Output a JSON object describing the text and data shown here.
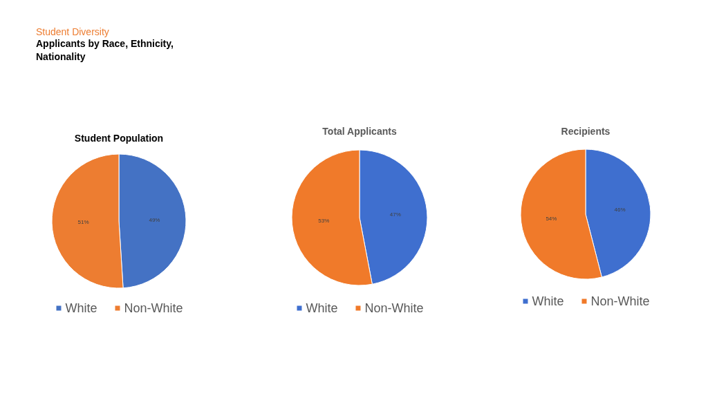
{
  "chart_data": [
    {
      "type": "other",
      "title": "Student Diversity",
      "subtitle": "Applicants by Race, Ethnicity, Nationality"
    },
    {
      "type": "pie",
      "title": "Student Population",
      "categories": [
        "White",
        "Non-White"
      ],
      "values": [
        49,
        51
      ],
      "value_labels": [
        "49%",
        "51%"
      ],
      "colors": [
        "#4472c4",
        "#ed7d31"
      ],
      "legend": "bottom"
    },
    {
      "type": "pie",
      "title": "Total Applicants",
      "categories": [
        "White",
        "Non-White"
      ],
      "values": [
        47,
        53
      ],
      "value_labels": [
        "47%",
        "53%"
      ],
      "colors": [
        "#3f6fcf",
        "#f07a2a"
      ],
      "legend": "bottom"
    },
    {
      "type": "pie",
      "title": "Recipients",
      "categories": [
        "White",
        "Non-White"
      ],
      "values": [
        46,
        54
      ],
      "value_labels": [
        "46%",
        "54%"
      ],
      "colors": [
        "#3f6fcf",
        "#f07a2a"
      ],
      "legend": "bottom"
    }
  ]
}
